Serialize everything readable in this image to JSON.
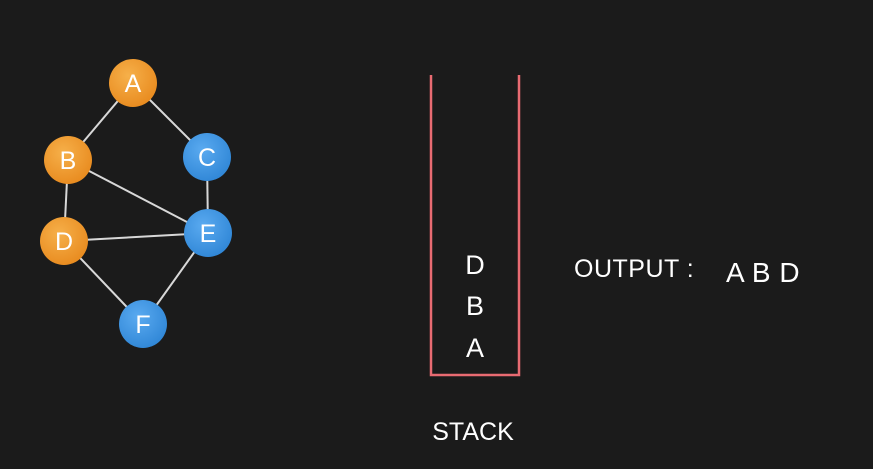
{
  "graph": {
    "nodes": [
      {
        "id": "A",
        "label": "A",
        "state": "visited"
      },
      {
        "id": "B",
        "label": "B",
        "state": "visited"
      },
      {
        "id": "C",
        "label": "C",
        "state": "unvisited"
      },
      {
        "id": "D",
        "label": "D",
        "state": "visited"
      },
      {
        "id": "E",
        "label": "E",
        "state": "unvisited"
      },
      {
        "id": "F",
        "label": "F",
        "state": "unvisited"
      }
    ],
    "edges": [
      [
        "A",
        "B"
      ],
      [
        "A",
        "C"
      ],
      [
        "B",
        "D"
      ],
      [
        "B",
        "E"
      ],
      [
        "C",
        "E"
      ],
      [
        "D",
        "E"
      ],
      [
        "D",
        "F"
      ],
      [
        "E",
        "F"
      ]
    ],
    "colors": {
      "visited": "#f29a2a",
      "unvisited": "#3e95e2",
      "edge": "#d8d8d8"
    }
  },
  "stack": {
    "items": [
      "D",
      "B",
      "A"
    ],
    "caption": "STACK",
    "color": "#e96b72"
  },
  "output": {
    "label": "OUTPUT :",
    "value": "A B D"
  }
}
